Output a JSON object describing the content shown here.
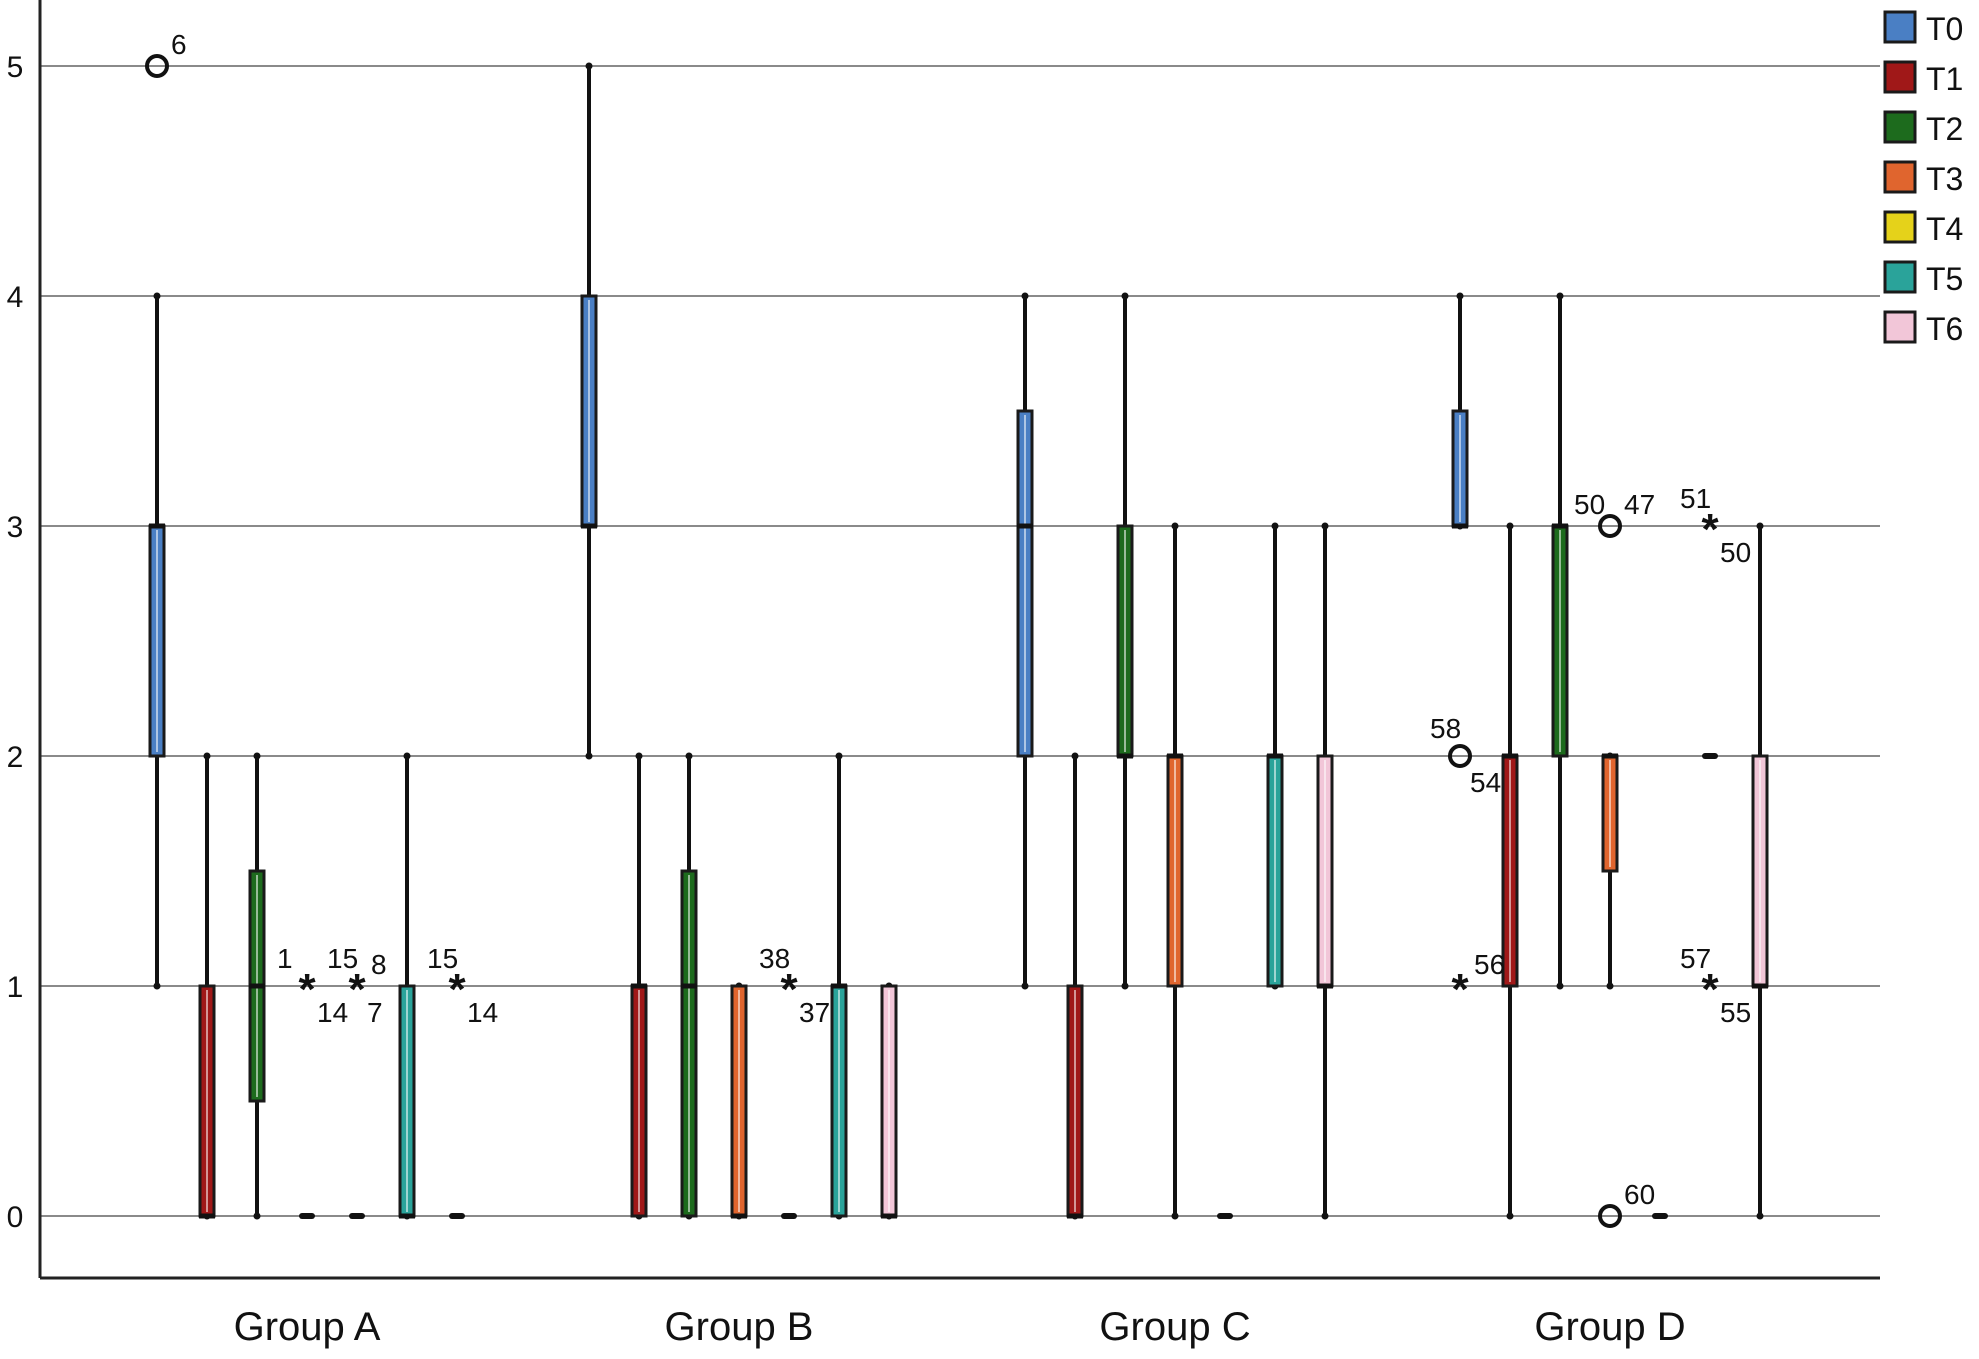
{
  "chart_data": {
    "type": "boxplot",
    "categories": [
      "Group A",
      "Group B",
      "Group C",
      "Group D"
    ],
    "ylim": [
      -0.28,
      5.25
    ],
    "yticks": [
      0,
      1,
      2,
      3,
      4,
      5
    ],
    "grid": true,
    "legend_position": "top-right",
    "series": [
      {
        "name": "T0",
        "color": "#4a7fc4",
        "stats": [
          {
            "min": 1,
            "q1": 2,
            "median": 3,
            "q3": 3,
            "max": 4
          },
          {
            "min": 2,
            "q1": 3,
            "median": 3,
            "q3": 4,
            "max": 5
          },
          {
            "min": 1,
            "q1": 2,
            "median": 3,
            "q3": 3.5,
            "max": 4
          },
          {
            "min": 3,
            "q1": 3,
            "median": 3,
            "q3": 3.5,
            "max": 4
          }
        ]
      },
      {
        "name": "T1",
        "color": "#a01818",
        "stats": [
          {
            "min": 0,
            "q1": 0,
            "median": 0,
            "q3": 1,
            "max": 2
          },
          {
            "min": 0,
            "q1": 0,
            "median": 1,
            "q3": 1,
            "max": 2
          },
          {
            "min": 0,
            "q1": 0,
            "median": 0,
            "q3": 1,
            "max": 2
          },
          {
            "min": 0,
            "q1": 1,
            "median": 2,
            "q3": 2,
            "max": 3
          }
        ]
      },
      {
        "name": "T2",
        "color": "#1d6b1d",
        "stats": [
          {
            "min": 0,
            "q1": 0.5,
            "median": 1,
            "q3": 1.5,
            "max": 2
          },
          {
            "min": 0,
            "q1": 0,
            "median": 1,
            "q3": 1.5,
            "max": 2
          },
          {
            "min": 1,
            "q1": 2,
            "median": 2,
            "q3": 3,
            "max": 4
          },
          {
            "min": 1,
            "q1": 2,
            "median": 3,
            "q3": 3,
            "max": 4
          }
        ]
      },
      {
        "name": "T3",
        "color": "#e0652e",
        "stats": [
          {
            "min": 0,
            "q1": 0,
            "median": 0,
            "q3": 0,
            "max": 0
          },
          {
            "min": 0,
            "q1": 0,
            "median": 0,
            "q3": 1,
            "max": 1
          },
          {
            "min": 0,
            "q1": 1,
            "median": 2,
            "q3": 2,
            "max": 3
          },
          {
            "min": 1,
            "q1": 1.5,
            "median": 2,
            "q3": 2,
            "max": 2
          }
        ]
      },
      {
        "name": "T4",
        "color": "#e5d21a",
        "stats": [
          {
            "min": 0,
            "q1": 0,
            "median": 0,
            "q3": 0,
            "max": 0
          },
          {
            "min": 0,
            "q1": 0,
            "median": 0,
            "q3": 0,
            "max": 0
          },
          {
            "min": 0,
            "q1": 0,
            "median": 0,
            "q3": 0,
            "max": 0
          },
          {
            "min": 0,
            "q1": 0,
            "median": 0,
            "q3": 0,
            "max": 0
          }
        ]
      },
      {
        "name": "T5",
        "color": "#2aa39a",
        "stats": [
          {
            "min": 0,
            "q1": 0,
            "median": 0,
            "q3": 1,
            "max": 2
          },
          {
            "min": 0,
            "q1": 0,
            "median": 1,
            "q3": 1,
            "max": 2
          },
          {
            "min": 1,
            "q1": 1,
            "median": 2,
            "q3": 2,
            "max": 3
          },
          {
            "min": 2,
            "q1": 2,
            "median": 2,
            "q3": 2,
            "max": 2
          }
        ]
      },
      {
        "name": "T6",
        "color": "#f2c6d8",
        "stats": [
          {
            "min": 0,
            "q1": 0,
            "median": 0,
            "q3": 0,
            "max": 0
          },
          {
            "min": 0,
            "q1": 0,
            "median": 0,
            "q3": 1,
            "max": 1
          },
          {
            "min": 0,
            "q1": 1,
            "median": 1,
            "q3": 2,
            "max": 3
          },
          {
            "min": 0,
            "q1": 1,
            "median": 1,
            "q3": 2,
            "max": 3
          }
        ]
      }
    ],
    "outliers": [
      {
        "group": 0,
        "series": 0,
        "y": 5,
        "shape": "circle",
        "labels": [
          "6"
        ]
      },
      {
        "group": 0,
        "series": 3,
        "y": 1,
        "shape": "star",
        "labels": [
          "1",
          "14"
        ]
      },
      {
        "group": 0,
        "series": 4,
        "y": 1,
        "shape": "star",
        "labels": [
          "15",
          "7"
        ]
      },
      {
        "group": 0,
        "series": 4,
        "y": 1,
        "shape": "label-only",
        "labels": [
          "8"
        ]
      },
      {
        "group": 0,
        "series": 6,
        "y": 1,
        "shape": "star",
        "labels": [
          "15",
          "14"
        ]
      },
      {
        "group": 1,
        "series": 4,
        "y": 1,
        "shape": "star",
        "labels": [
          "38",
          "37"
        ]
      },
      {
        "group": 3,
        "series": 0,
        "y": 2,
        "shape": "circle",
        "labels": [
          "58",
          "54"
        ]
      },
      {
        "group": 3,
        "series": 0,
        "y": 1,
        "shape": "star",
        "labels": [
          "56"
        ]
      },
      {
        "group": 3,
        "series": 2,
        "y": 3,
        "shape": "label-only",
        "labels": [
          "50"
        ]
      },
      {
        "group": 3,
        "series": 3,
        "y": 3,
        "shape": "circle",
        "labels": [
          "47"
        ]
      },
      {
        "group": 3,
        "series": 3,
        "y": 0,
        "shape": "circle",
        "labels": [
          "60"
        ]
      },
      {
        "group": 3,
        "series": 5,
        "y": 3,
        "shape": "star",
        "labels": [
          "51",
          "50"
        ]
      },
      {
        "group": 3,
        "series": 5,
        "y": 1,
        "shape": "star",
        "labels": [
          "57",
          "55"
        ]
      }
    ]
  }
}
